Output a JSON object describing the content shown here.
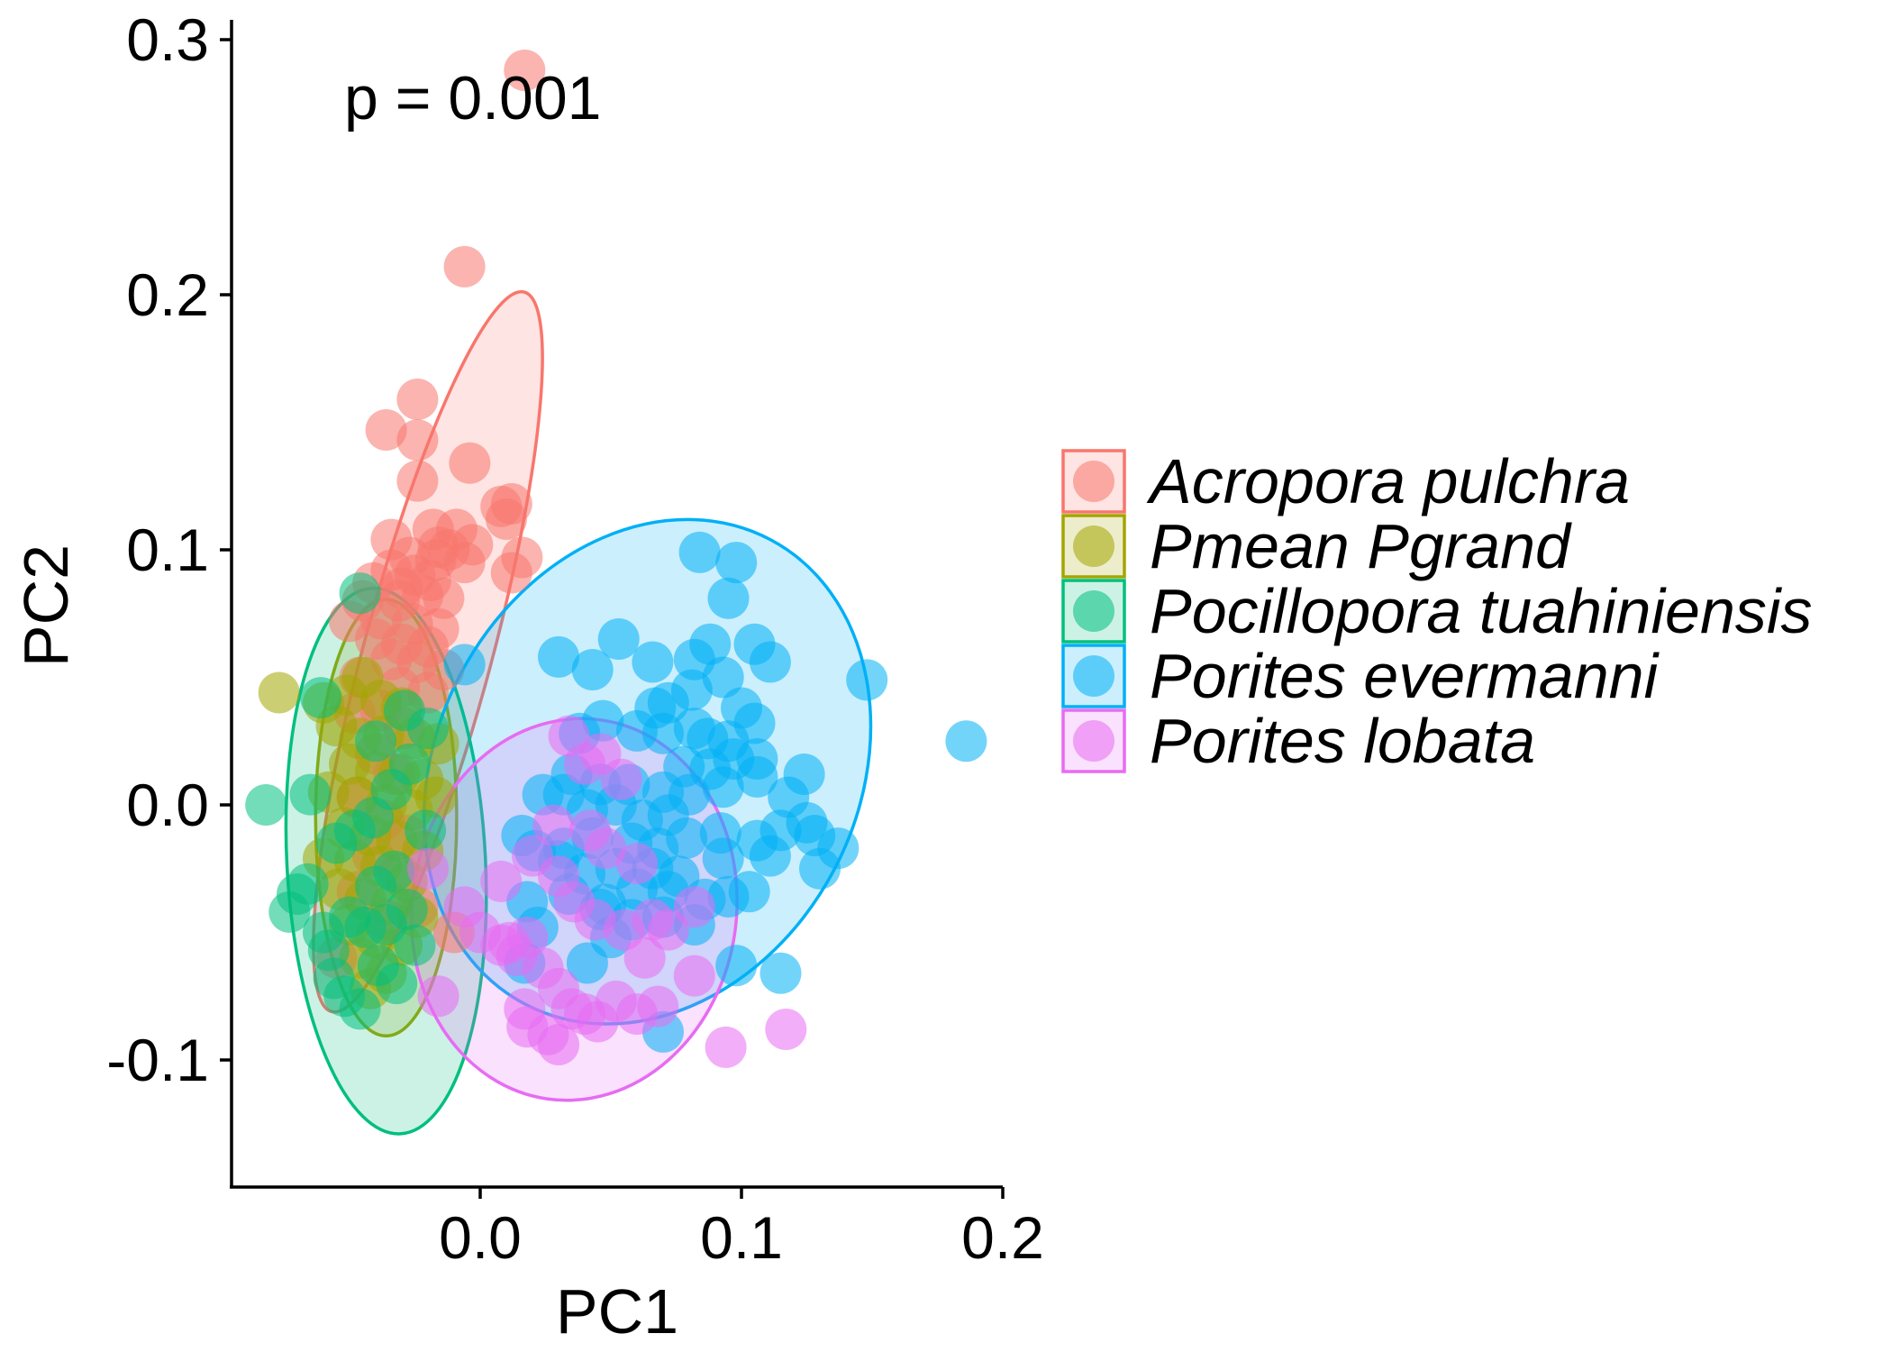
{
  "chart_data": {
    "type": "scatter",
    "xlabel": "PC1",
    "ylabel": "PC2",
    "xlim": [
      -0.097,
      0.2
    ],
    "ylim": [
      -0.148,
      0.31
    ],
    "x_ticks": [
      0.0,
      0.1,
      0.2
    ],
    "x_tick_labels": [
      "0.0",
      "0.1",
      "0.2"
    ],
    "y_ticks": [
      -0.1,
      0.0,
      0.1,
      0.2,
      0.3
    ],
    "y_tick_labels": [
      "-0.1",
      "0.0",
      "0.1",
      "0.2",
      "0.3"
    ],
    "annotation": "p = 0.001",
    "grid": false,
    "legend_position": "right",
    "series": [
      {
        "name": "Acropora pulchra",
        "color": "#F8766D",
        "ellipse": {
          "cx": -0.02,
          "cy": 0.06,
          "rx": 0.1425,
          "ry": 0.0245,
          "angle_deg": 75
        },
        "points": [
          [
            0.017,
            0.288
          ],
          [
            -0.006,
            0.211
          ],
          [
            -0.024,
            0.159
          ],
          [
            -0.036,
            0.147
          ],
          [
            -0.024,
            0.143
          ],
          [
            -0.004,
            0.134
          ],
          [
            -0.024,
            0.127
          ],
          [
            0.008,
            0.117
          ],
          [
            0.012,
            0.118
          ],
          [
            0.01,
            0.112
          ],
          [
            -0.018,
            0.108
          ],
          [
            -0.009,
            0.108
          ],
          [
            -0.034,
            0.104
          ],
          [
            -0.016,
            0.101
          ],
          [
            -0.012,
            0.1
          ],
          [
            -0.003,
            0.102
          ],
          [
            -0.027,
            0.097
          ],
          [
            -0.017,
            0.096
          ],
          [
            -0.006,
            0.095
          ],
          [
            -0.034,
            0.092
          ],
          [
            -0.025,
            0.09
          ],
          [
            -0.041,
            0.087
          ],
          [
            -0.03,
            0.085
          ],
          [
            -0.019,
            0.088
          ],
          [
            -0.045,
            0.08
          ],
          [
            -0.031,
            0.08
          ],
          [
            -0.022,
            0.082
          ],
          [
            -0.014,
            0.081
          ],
          [
            -0.05,
            0.072
          ],
          [
            -0.038,
            0.073
          ],
          [
            -0.026,
            0.071
          ],
          [
            -0.016,
            0.069
          ],
          [
            -0.04,
            0.065
          ],
          [
            -0.03,
            0.063
          ],
          [
            -0.02,
            0.062
          ],
          [
            -0.034,
            0.057
          ],
          [
            -0.024,
            0.056
          ],
          [
            -0.014,
            0.053
          ],
          [
            -0.046,
            0.05
          ],
          [
            -0.031,
            0.046
          ],
          [
            -0.02,
            0.044
          ],
          [
            -0.048,
            0.036
          ],
          [
            -0.038,
            0.037
          ],
          [
            -0.029,
            0.03
          ],
          [
            -0.04,
            0.02
          ],
          [
            -0.033,
            0.012
          ],
          [
            -0.047,
            0.003
          ],
          [
            -0.037,
            -0.006
          ],
          [
            -0.028,
            -0.012
          ],
          [
            -0.041,
            -0.02
          ],
          [
            -0.031,
            -0.027
          ],
          [
            -0.047,
            -0.034
          ],
          [
            -0.036,
            -0.045
          ],
          [
            -0.024,
            -0.04
          ],
          [
            0.016,
            0.097
          ],
          [
            0.012,
            0.091
          ],
          [
            -0.01,
            -0.05
          ],
          [
            -0.055,
            -0.06
          ]
        ]
      },
      {
        "name": "Pmean Pgrand",
        "color": "#A3A500",
        "ellipse": {
          "cx": -0.036,
          "cy": -0.005,
          "rx": 0.027,
          "ry": 0.0835,
          "angle_deg": 0
        },
        "points": [
          [
            -0.077,
            0.044
          ],
          [
            -0.06,
            0.04
          ],
          [
            -0.051,
            0.043
          ],
          [
            -0.045,
            0.05
          ],
          [
            -0.038,
            0.041
          ],
          [
            -0.03,
            0.038
          ],
          [
            -0.055,
            0.031
          ],
          [
            -0.046,
            0.026
          ],
          [
            -0.037,
            0.027
          ],
          [
            -0.025,
            0.026
          ],
          [
            -0.016,
            0.024
          ],
          [
            -0.05,
            0.016
          ],
          [
            -0.04,
            0.013
          ],
          [
            -0.031,
            0.012
          ],
          [
            -0.022,
            0.01
          ],
          [
            -0.058,
            0.005
          ],
          [
            -0.047,
            0.003
          ],
          [
            -0.036,
            0.0
          ],
          [
            -0.026,
            -0.002
          ],
          [
            -0.017,
            0.003
          ],
          [
            -0.052,
            -0.009
          ],
          [
            -0.042,
            -0.012
          ],
          [
            -0.032,
            -0.014
          ],
          [
            -0.022,
            -0.018
          ],
          [
            -0.06,
            -0.021
          ],
          [
            -0.048,
            -0.022
          ],
          [
            -0.038,
            -0.024
          ],
          [
            -0.028,
            -0.03
          ],
          [
            -0.054,
            -0.033
          ],
          [
            -0.044,
            -0.037
          ],
          [
            -0.034,
            -0.039
          ],
          [
            -0.024,
            -0.044
          ],
          [
            -0.05,
            -0.047
          ],
          [
            -0.04,
            -0.052
          ],
          [
            -0.03,
            -0.055
          ],
          [
            -0.046,
            -0.06
          ],
          [
            -0.036,
            -0.066
          ],
          [
            -0.042,
            -0.072
          ]
        ]
      },
      {
        "name": "Pocillopora tuahiniensis",
        "color": "#00BF7D",
        "ellipse": {
          "cx": -0.036,
          "cy": -0.022,
          "rx": 0.038,
          "ry": 0.1045,
          "angle_deg": 3
        },
        "points": [
          [
            -0.046,
            0.083
          ],
          [
            -0.082,
            0.0
          ],
          [
            -0.061,
            0.042
          ],
          [
            -0.065,
            0.004
          ],
          [
            -0.07,
            -0.035
          ],
          [
            -0.073,
            -0.042
          ],
          [
            -0.066,
            -0.031
          ],
          [
            -0.06,
            -0.05
          ],
          [
            -0.058,
            -0.057
          ],
          [
            -0.056,
            -0.068
          ],
          [
            -0.052,
            -0.075
          ],
          [
            -0.046,
            -0.08
          ],
          [
            -0.039,
            -0.063
          ],
          [
            -0.032,
            -0.07
          ],
          [
            -0.025,
            -0.055
          ],
          [
            -0.05,
            -0.044
          ],
          [
            -0.044,
            -0.048
          ],
          [
            -0.036,
            -0.047
          ],
          [
            -0.028,
            -0.041
          ],
          [
            -0.04,
            -0.032
          ],
          [
            -0.033,
            -0.026
          ],
          [
            -0.048,
            -0.01
          ],
          [
            -0.041,
            -0.005
          ],
          [
            -0.034,
            0.006
          ],
          [
            -0.027,
            0.016
          ],
          [
            -0.02,
            0.03
          ],
          [
            -0.029,
            0.037
          ],
          [
            -0.04,
            0.025
          ],
          [
            -0.055,
            -0.015
          ],
          [
            -0.021,
            -0.01
          ]
        ]
      },
      {
        "name": "Porites evermanni",
        "color": "#00B0F6",
        "ellipse": {
          "cx": 0.064,
          "cy": 0.013,
          "rx": 0.1005,
          "ry": 0.0807,
          "angle_deg": 62
        },
        "points": [
          [
            0.084,
            0.099
          ],
          [
            0.098,
            0.095
          ],
          [
            0.095,
            0.081
          ],
          [
            0.186,
            0.025
          ],
          [
            0.148,
            0.049
          ],
          [
            0.105,
            0.063
          ],
          [
            0.111,
            0.056
          ],
          [
            0.088,
            0.063
          ],
          [
            0.082,
            0.057
          ],
          [
            0.093,
            0.05
          ],
          [
            0.066,
            0.056
          ],
          [
            0.053,
            0.065
          ],
          [
            0.043,
            0.053
          ],
          [
            0.03,
            0.058
          ],
          [
            0.1,
            0.038
          ],
          [
            0.105,
            0.032
          ],
          [
            0.095,
            0.025
          ],
          [
            0.081,
            0.045
          ],
          [
            0.072,
            0.04
          ],
          [
            0.067,
            0.038
          ],
          [
            0.06,
            0.029
          ],
          [
            0.047,
            0.033
          ],
          [
            0.038,
            0.028
          ],
          [
            0.07,
            0.028
          ],
          [
            0.082,
            0.03
          ],
          [
            0.087,
            0.026
          ],
          [
            0.106,
            0.018
          ],
          [
            0.097,
            0.018
          ],
          [
            0.088,
            0.014
          ],
          [
            0.078,
            0.015
          ],
          [
            0.124,
            0.012
          ],
          [
            0.118,
            0.003
          ],
          [
            0.106,
            0.011
          ],
          [
            0.093,
            0.007
          ],
          [
            0.08,
            0.004
          ],
          [
            0.07,
            0.005
          ],
          [
            0.057,
            0.008
          ],
          [
            0.046,
            0.008
          ],
          [
            0.035,
            0.012
          ],
          [
            0.052,
            0.0
          ],
          [
            0.041,
            -0.002
          ],
          [
            0.032,
            0.004
          ],
          [
            0.024,
            0.004
          ],
          [
            0.062,
            -0.006
          ],
          [
            0.072,
            -0.004
          ],
          [
            0.125,
            -0.007
          ],
          [
            0.128,
            -0.012
          ],
          [
            0.137,
            -0.017
          ],
          [
            0.115,
            -0.01
          ],
          [
            0.106,
            -0.014
          ],
          [
            0.092,
            -0.011
          ],
          [
            0.079,
            -0.013
          ],
          [
            0.068,
            -0.017
          ],
          [
            0.058,
            -0.015
          ],
          [
            0.043,
            -0.013
          ],
          [
            0.032,
            -0.017
          ],
          [
            0.021,
            -0.018
          ],
          [
            0.016,
            -0.012
          ],
          [
            0.076,
            -0.028
          ],
          [
            0.093,
            -0.021
          ],
          [
            0.111,
            -0.02
          ],
          [
            0.13,
            -0.025
          ],
          [
            0.066,
            -0.025
          ],
          [
            0.052,
            -0.025
          ],
          [
            0.04,
            -0.027
          ],
          [
            0.03,
            -0.022
          ],
          [
            0.018,
            -0.038
          ],
          [
            0.034,
            -0.035
          ],
          [
            0.048,
            -0.039
          ],
          [
            0.06,
            -0.033
          ],
          [
            0.072,
            -0.034
          ],
          [
            0.095,
            -0.036
          ],
          [
            0.103,
            -0.034
          ],
          [
            0.046,
            -0.041
          ],
          [
            0.058,
            -0.045
          ],
          [
            0.07,
            -0.044
          ],
          [
            0.082,
            -0.047
          ],
          [
            0.098,
            -0.063
          ],
          [
            0.115,
            -0.066
          ],
          [
            0.07,
            -0.089
          ],
          [
            0.041,
            -0.062
          ],
          [
            0.017,
            -0.062
          ],
          [
            0.022,
            -0.048
          ],
          [
            0.05,
            -0.052
          ],
          [
            -0.006,
            0.055
          ],
          [
            0.086,
            -0.037
          ]
        ]
      },
      {
        "name": "Porites lobata",
        "color": "#E76BF3",
        "ellipse": {
          "cx": 0.036,
          "cy": -0.041,
          "rx": 0.0732,
          "ry": 0.0621,
          "angle_deg": 82
        },
        "points": [
          [
            0.034,
            0.027
          ],
          [
            0.04,
            0.016
          ],
          [
            0.046,
            0.02
          ],
          [
            0.054,
            0.01
          ],
          [
            0.042,
            -0.01
          ],
          [
            0.048,
            -0.017
          ],
          [
            0.06,
            -0.023
          ],
          [
            0.03,
            -0.028
          ],
          [
            0.036,
            -0.038
          ],
          [
            0.044,
            -0.045
          ],
          [
            0.055,
            -0.049
          ],
          [
            0.066,
            -0.045
          ],
          [
            0.072,
            -0.049
          ],
          [
            0.082,
            -0.04
          ],
          [
            0.018,
            -0.052
          ],
          [
            0.008,
            -0.055
          ],
          [
            0.014,
            -0.059
          ],
          [
            0.024,
            -0.064
          ],
          [
            0.03,
            -0.072
          ],
          [
            0.035,
            -0.08
          ],
          [
            0.017,
            -0.08
          ],
          [
            0.04,
            -0.082
          ],
          [
            0.052,
            -0.077
          ],
          [
            0.06,
            -0.082
          ],
          [
            0.068,
            -0.079
          ],
          [
            0.082,
            -0.067
          ],
          [
            0.094,
            -0.095
          ],
          [
            0.117,
            -0.088
          ],
          [
            0.018,
            -0.087
          ],
          [
            0.026,
            -0.09
          ],
          [
            0.03,
            -0.094
          ],
          [
            0.045,
            -0.085
          ],
          [
            0.011,
            -0.054
          ],
          [
            -0.016,
            -0.075
          ],
          [
            0.0,
            -0.05
          ],
          [
            -0.006,
            -0.04
          ],
          [
            0.008,
            -0.03
          ],
          [
            0.02,
            -0.02
          ],
          [
            0.028,
            -0.008
          ],
          [
            0.063,
            -0.06
          ],
          [
            -0.02,
            -0.025
          ]
        ]
      }
    ]
  },
  "legend": {
    "items": [
      {
        "label": "Acropora pulchra",
        "color": "#F8766D"
      },
      {
        "label": "Pmean Pgrand",
        "color": "#A3A500"
      },
      {
        "label": "Pocillopora tuahiniensis",
        "color": "#00BF7D"
      },
      {
        "label": "Porites evermanni",
        "color": "#00B0F6"
      },
      {
        "label": "Porites lobata",
        "color": "#E76BF3"
      }
    ]
  }
}
